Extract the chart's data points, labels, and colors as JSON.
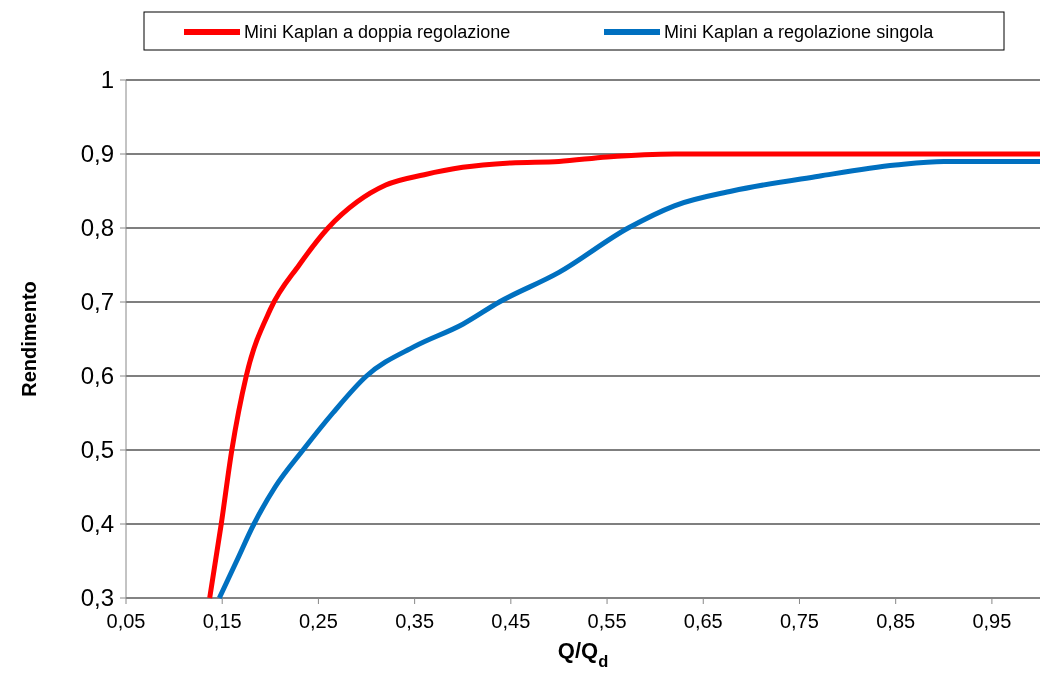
{
  "chart_data": {
    "type": "line",
    "xlabel": "Q/Q$_{d}$",
    "ylabel": "Rendimento",
    "legend": "top",
    "grid": "y",
    "marker": "none",
    "line_style": "solid",
    "xlim": [
      0.05,
      1.0
    ],
    "ylim": [
      0.3,
      1
    ],
    "xticks": [
      {
        "value": 0.05,
        "label": "0,05"
      },
      {
        "value": 0.15,
        "label": "0,15"
      },
      {
        "value": 0.25,
        "label": "0,25"
      },
      {
        "value": 0.35,
        "label": "0,35"
      },
      {
        "value": 0.45,
        "label": "0,45"
      },
      {
        "value": 0.55,
        "label": "0,55"
      },
      {
        "value": 0.65,
        "label": "0,65"
      },
      {
        "value": 0.75,
        "label": "0,75"
      },
      {
        "value": 0.85,
        "label": "0,85"
      },
      {
        "value": 0.95,
        "label": "0,95"
      }
    ],
    "yticks": [
      {
        "value": 0.3,
        "label": "0,3"
      },
      {
        "value": 0.4,
        "label": "0,4"
      },
      {
        "value": 0.5,
        "label": "0,5"
      },
      {
        "value": 0.6,
        "label": "0,6"
      },
      {
        "value": 0.7,
        "label": "0,7"
      },
      {
        "value": 0.8,
        "label": "0,8"
      },
      {
        "value": 0.9,
        "label": "0,9"
      },
      {
        "value": 1,
        "label": "1"
      }
    ],
    "series": [
      {
        "name": "Mini Kaplan a doppia regolazione",
        "color": "#ff0000",
        "x": [
          0.137,
          0.149,
          0.16,
          0.175,
          0.2,
          0.23,
          0.26,
          0.29,
          0.32,
          0.36,
          0.4,
          0.45,
          0.5,
          0.55,
          0.62,
          0.7,
          0.8,
          0.9,
          1.0
        ],
        "values": [
          0.3,
          0.4,
          0.5,
          0.6,
          0.69,
          0.75,
          0.8,
          0.835,
          0.858,
          0.872,
          0.882,
          0.888,
          0.89,
          0.896,
          0.9,
          0.9,
          0.9,
          0.9,
          0.9
        ]
      },
      {
        "name": "Mini Kaplan a regolazione singola",
        "color": "#0070c0",
        "x": [
          0.147,
          0.165,
          0.183,
          0.205,
          0.234,
          0.265,
          0.3,
          0.35,
          0.4,
          0.438,
          0.5,
          0.572,
          0.62,
          0.68,
          0.77,
          0.85,
          0.9,
          0.95,
          1.0
        ],
        "values": [
          0.3,
          0.35,
          0.4,
          0.45,
          0.5,
          0.55,
          0.6,
          0.64,
          0.67,
          0.7,
          0.74,
          0.8,
          0.83,
          0.85,
          0.87,
          0.885,
          0.89,
          0.89,
          0.89
        ]
      }
    ]
  }
}
